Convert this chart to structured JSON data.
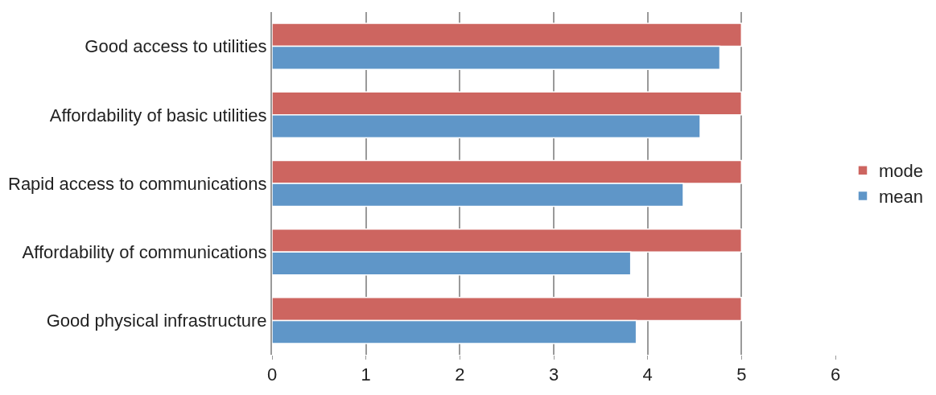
{
  "chart_data": {
    "type": "bar",
    "orientation": "horizontal",
    "categories": [
      "Good access to utilities",
      "Affordability of basic utilities",
      "Rapid access to communications",
      "Affordability of communications",
      "Good physical infrastructure"
    ],
    "series": [
      {
        "name": "mode",
        "color": "#cd6560",
        "values": [
          5,
          5,
          5,
          5,
          5
        ]
      },
      {
        "name": "mean",
        "color": "#5f96c8",
        "values": [
          4.77,
          4.56,
          4.38,
          3.82,
          3.88
        ]
      }
    ],
    "xlim": [
      0,
      6
    ],
    "xticks": [
      0,
      1,
      2,
      3,
      4,
      5,
      6
    ],
    "grid": "x",
    "legend": "right"
  }
}
